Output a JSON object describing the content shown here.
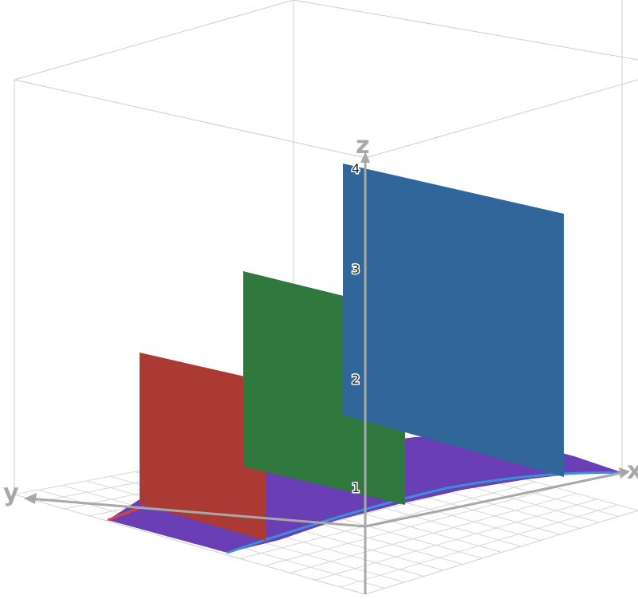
{
  "axes": {
    "x_label": "x",
    "y_label": "y",
    "z_label": "z",
    "z_ticks": [
      "1",
      "2",
      "3",
      "4"
    ]
  },
  "surfaces": [
    {
      "name": "red-panel",
      "color": "#ab3a35",
      "height": 2
    },
    {
      "name": "green-panel",
      "color": "#2f793e",
      "height": 3
    },
    {
      "name": "blue-panel",
      "color": "#30669a",
      "height": 4
    }
  ],
  "colors": {
    "base_region": "#6a3fb5",
    "boundary_curve": "#3a8fd8",
    "axis": "#a8a8a8",
    "box": "#cfcfcf",
    "grid": "#d7d7d7"
  }
}
